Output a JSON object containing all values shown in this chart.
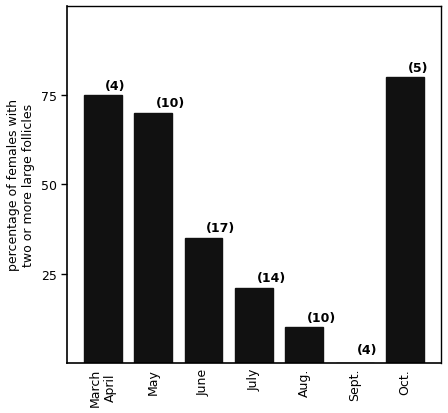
{
  "categories": [
    "March\nApril",
    "May",
    "June",
    "July",
    "Aug.",
    "Sept.",
    "Oct."
  ],
  "values": [
    75,
    70,
    35,
    21,
    10,
    0,
    80
  ],
  "annotations": [
    "(4)",
    "(10)",
    "(17)",
    "(14)",
    "(10)",
    "(4)",
    "(5)"
  ],
  "bar_color": "#111111",
  "ylabel": "percentage of females with\ntwo or more large follicles",
  "ylim": [
    0,
    100
  ],
  "yticks": [
    25,
    50,
    75
  ],
  "background_color": "#ffffff",
  "bar_width": 0.75,
  "annotation_fontsize": 9,
  "ylabel_fontsize": 9,
  "tick_fontsize": 9
}
